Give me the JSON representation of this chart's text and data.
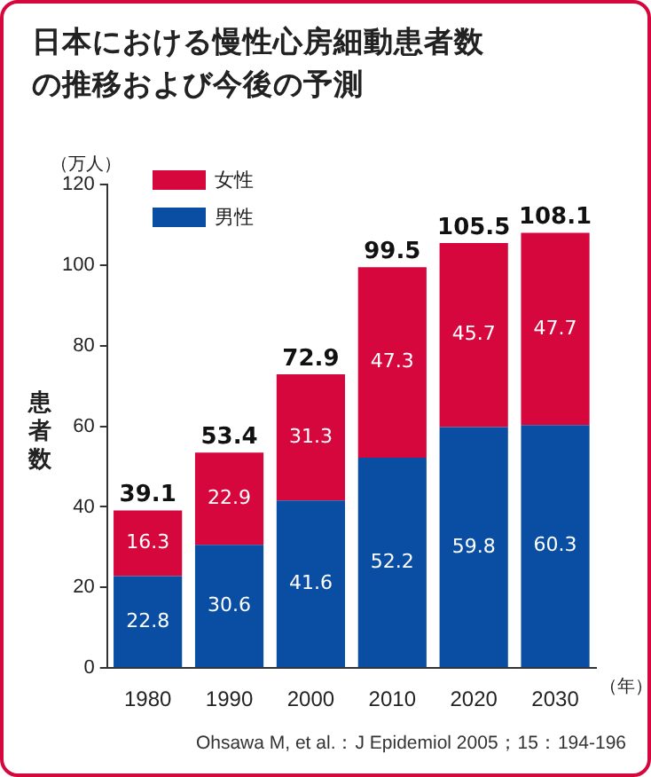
{
  "chart_data": {
    "type": "bar",
    "title": "日本における慢性心房細動患者数の推移および今後の予測",
    "ylabel": "患者数",
    "xlabel": "（年）",
    "categories": [
      "1980",
      "1990",
      "2000",
      "2010",
      "2020",
      "2030"
    ],
    "series": [
      {
        "name": "男性",
        "color": "#0a4ea3",
        "values": [
          22.8,
          30.6,
          41.6,
          52.2,
          59.8,
          60.3
        ]
      },
      {
        "name": "女性",
        "color": "#d5073c",
        "values": [
          16.3,
          22.9,
          31.3,
          47.3,
          45.7,
          47.7
        ]
      }
    ],
    "stacked": true,
    "data_labels": true,
    "totals": [
      "39.1",
      "53.4",
      "72.9",
      "99.5",
      "105.5",
      "108.1"
    ],
    "ylim": [
      0,
      120
    ],
    "yticks": [
      0,
      20,
      40,
      60,
      80,
      100,
      120
    ],
    "grid": false,
    "legend": "top left",
    "annotations": [
      "（万人）",
      "Ohsawa M, et al.：J Epidemiol 2005；15：194-196"
    ]
  }
}
